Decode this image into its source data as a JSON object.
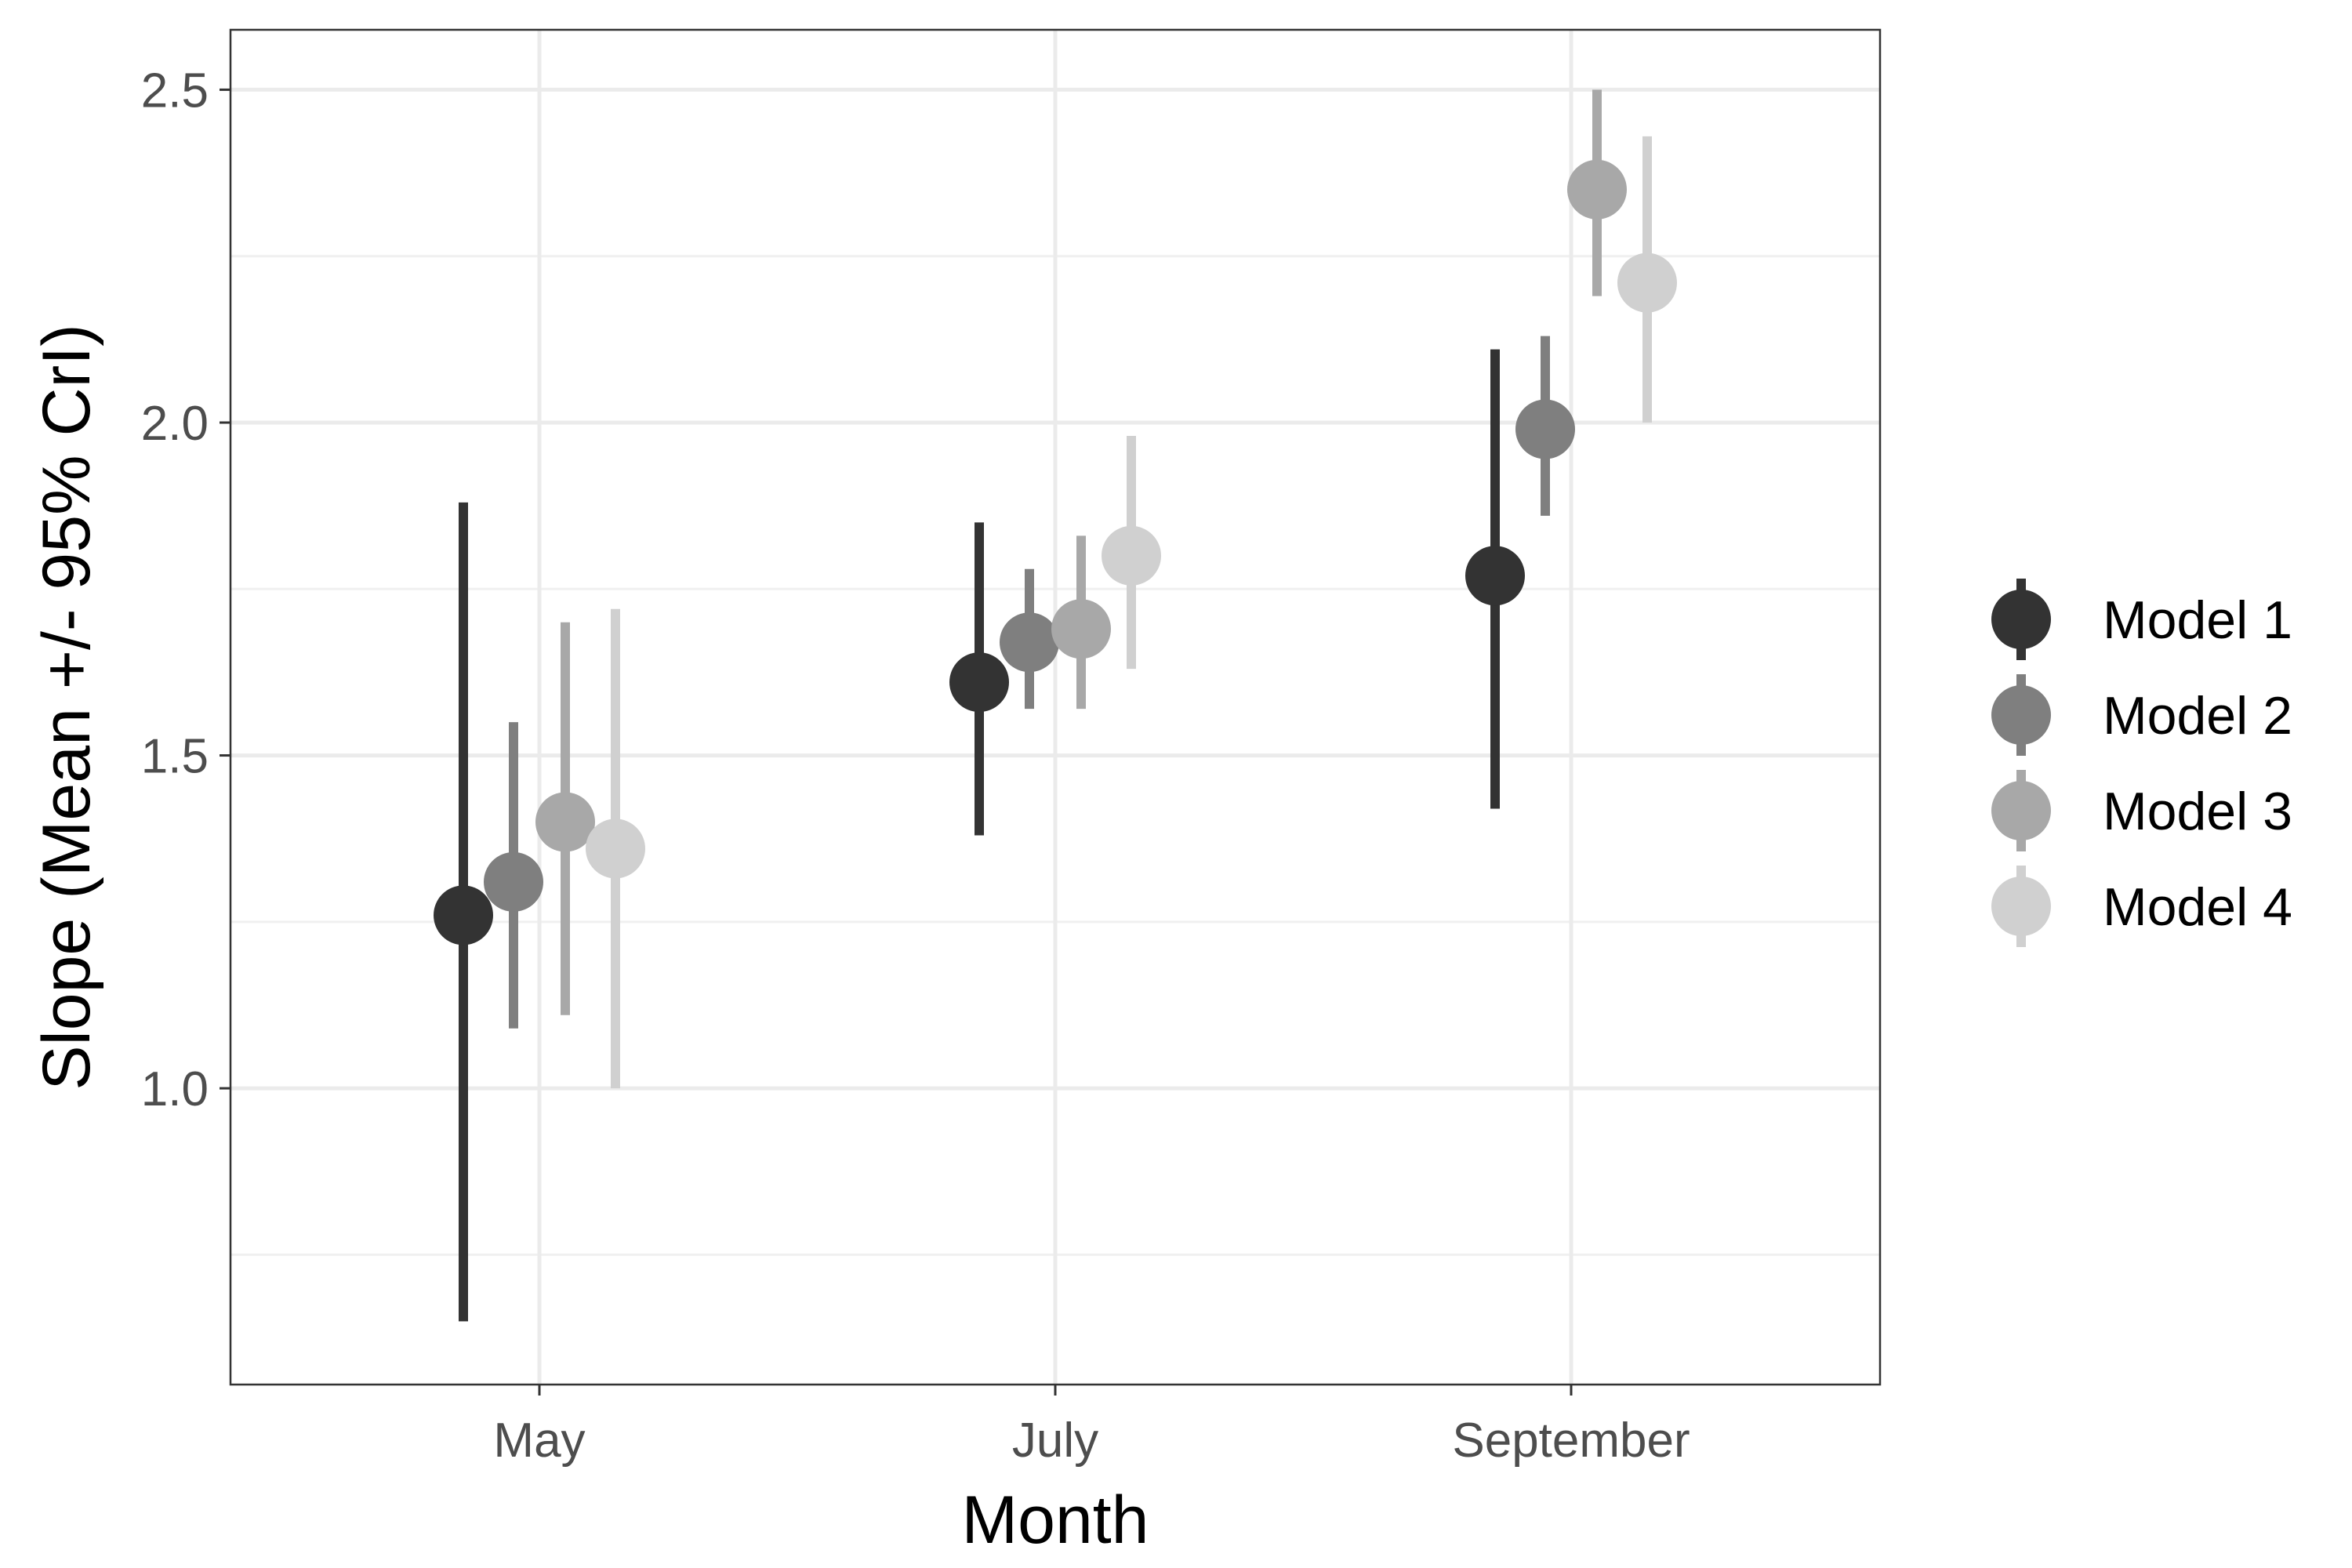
{
  "chart_data": {
    "type": "scatter",
    "subtype": "point-range",
    "categories": [
      "May",
      "July",
      "September"
    ],
    "series": [
      {
        "name": "Model 1",
        "color": "#333333",
        "mean": [
          1.26,
          1.61,
          1.77
        ],
        "lower": [
          0.65,
          1.38,
          1.42
        ],
        "upper": [
          1.88,
          1.85,
          2.11
        ]
      },
      {
        "name": "Model 2",
        "color": "#7f7f7f",
        "mean": [
          1.31,
          1.67,
          1.99
        ],
        "lower": [
          1.09,
          1.57,
          1.86
        ],
        "upper": [
          1.55,
          1.78,
          2.13
        ]
      },
      {
        "name": "Model 3",
        "color": "#a8a8a8",
        "mean": [
          1.4,
          1.69,
          2.35
        ],
        "lower": [
          1.11,
          1.57,
          2.19
        ],
        "upper": [
          1.7,
          1.83,
          2.5
        ]
      },
      {
        "name": "Model 4",
        "color": "#d0d0d0",
        "mean": [
          1.36,
          1.8,
          2.21
        ],
        "lower": [
          1.0,
          1.63,
          2.0
        ],
        "upper": [
          1.72,
          1.98,
          2.43
        ]
      }
    ],
    "xlabel": "Month",
    "ylabel": "Slope (Mean +/- 95% CrI)",
    "ylim": [
      0.555,
      2.59
    ],
    "yticks": [
      1.0,
      1.5,
      2.0,
      2.5
    ],
    "ytick_labels": [
      "1.0",
      "1.5",
      "2.0",
      "2.5"
    ],
    "y_minor_gridlines": [
      0.75,
      1.25,
      1.75,
      2.25
    ],
    "grid": true,
    "legend_position": "right"
  }
}
